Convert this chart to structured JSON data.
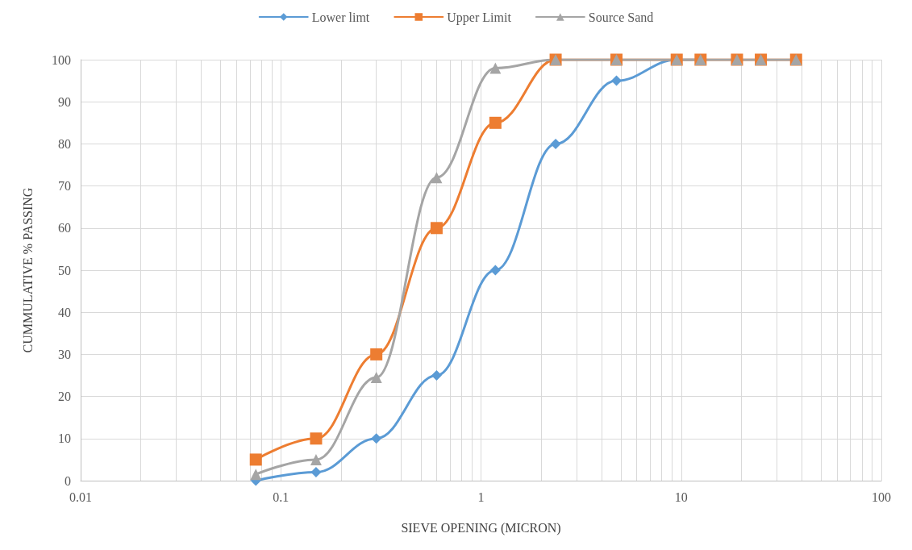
{
  "chart_data": {
    "type": "line",
    "xlabel": "SIEVE OPENING (MICRON)",
    "ylabel": "CUMMULATIVE % PASSING",
    "x": [
      0.075,
      0.15,
      0.3,
      0.6,
      1.18,
      2.36,
      4.75,
      9.5,
      12.5,
      19,
      25,
      37.5
    ],
    "series": [
      {
        "name": "Lower limt",
        "color": "#5b9bd5",
        "marker": "diamond",
        "values": [
          0,
          2,
          10,
          25,
          50,
          80,
          95,
          100,
          100,
          null,
          null,
          null
        ]
      },
      {
        "name": "Upper Limit",
        "color": "#ed7d31",
        "marker": "square",
        "values": [
          5,
          10,
          30,
          60,
          85,
          100,
          100,
          100,
          100,
          100,
          100,
          100
        ]
      },
      {
        "name": "Source Sand",
        "color": "#a5a5a5",
        "marker": "triangle",
        "values": [
          1.5,
          5,
          24.5,
          72,
          98,
          100,
          100,
          100,
          100,
          100,
          100,
          100
        ]
      }
    ],
    "log": "x",
    "xlim": [
      0.01,
      100
    ],
    "xticks": [
      0.01,
      0.1,
      1,
      10,
      100
    ],
    "ylim": [
      0,
      100
    ],
    "yticks": [
      0,
      10,
      20,
      30,
      40,
      50,
      60,
      70,
      80,
      90,
      100
    ],
    "grid": true,
    "legend": "top"
  }
}
